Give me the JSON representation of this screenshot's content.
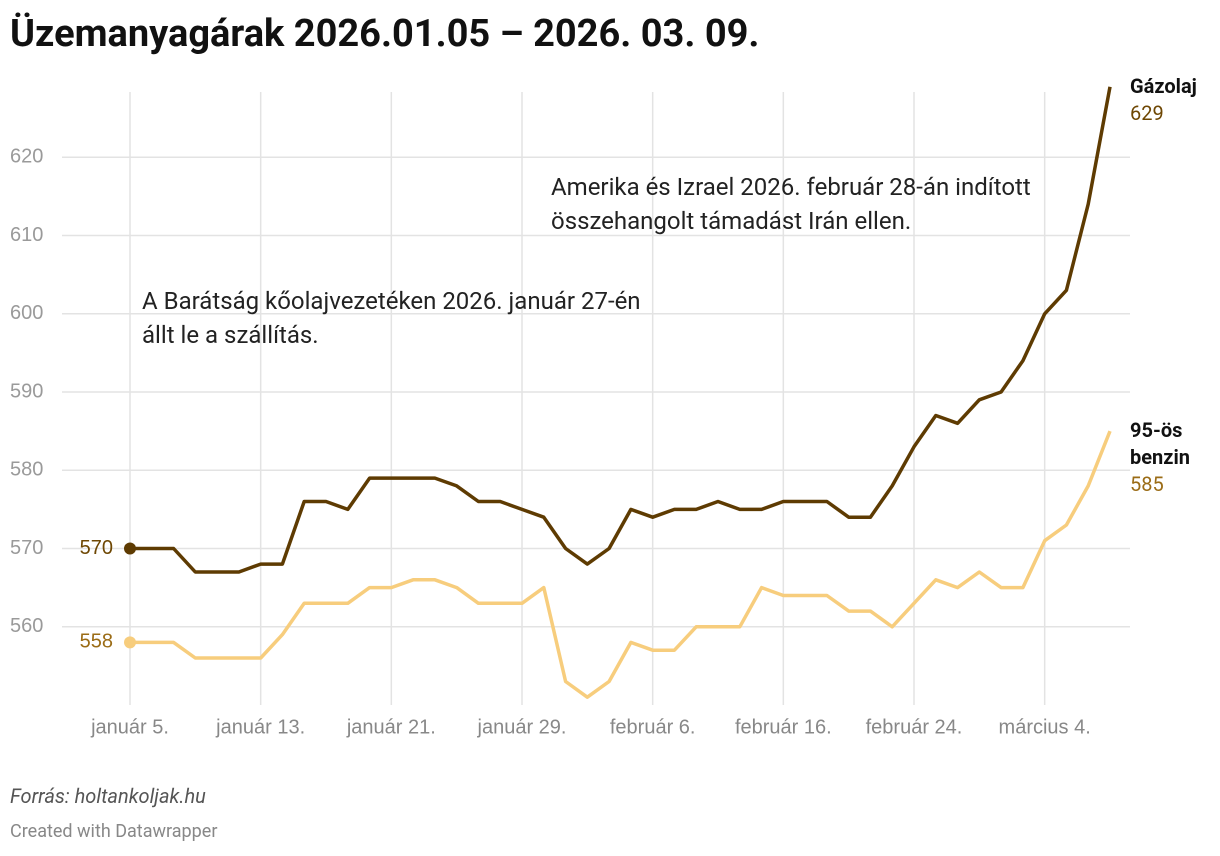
{
  "chart_data": {
    "type": "line",
    "title": "Üzemanyagárak 2026.01.05 – 2026. 03. 09.",
    "source": "Forrás: holtankoljak.hu",
    "credit": "Created with Datawrapper",
    "categories": [
      "január 5.",
      null,
      null,
      null,
      null,
      null,
      "január 13.",
      null,
      null,
      null,
      null,
      null,
      "január 21.",
      null,
      null,
      null,
      null,
      null,
      "január 29.",
      null,
      null,
      null,
      null,
      null,
      "február 6.",
      null,
      null,
      null,
      null,
      null,
      "február 16.",
      null,
      null,
      null,
      null,
      null,
      "február 24.",
      null,
      null,
      null,
      null,
      null,
      "március 4.",
      null,
      null,
      null
    ],
    "series": [
      {
        "name": "Gázolaj",
        "color": "#5e3b02",
        "label_color": "#6e4703",
        "values": [
          570,
          570,
          570,
          567,
          567,
          567,
          568,
          568,
          576,
          576,
          575,
          579,
          579,
          579,
          579,
          578,
          576,
          576,
          575,
          574,
          570,
          568,
          570,
          575,
          574,
          575,
          575,
          576,
          575,
          575,
          576,
          576,
          576,
          574,
          574,
          578,
          583,
          587,
          586,
          589,
          590,
          594,
          600,
          603,
          614,
          629
        ]
      },
      {
        "name": "95-ös benzin",
        "color": "#f7cd7d",
        "label_color": "#9b6c16",
        "values": [
          558,
          558,
          558,
          556,
          556,
          556,
          556,
          559,
          563,
          563,
          563,
          565,
          565,
          566,
          566,
          565,
          563,
          563,
          563,
          565,
          553,
          551,
          553,
          558,
          557,
          557,
          560,
          560,
          560,
          565,
          564,
          564,
          564,
          562,
          562,
          560,
          563,
          566,
          565,
          567,
          565,
          565,
          571,
          573,
          578,
          585
        ]
      }
    ],
    "ylim": [
      550,
      630
    ],
    "yticks": [
      560,
      570,
      580,
      590,
      600,
      610,
      620
    ],
    "grid": true,
    "annotations": [
      {
        "text": "A Barátság kőolajvezetéken 2026. január 27-én állt le a szállítás."
      },
      {
        "text": "Amerika és Izrael 2026. február 28-án indított összehangolt támadást Irán ellen."
      }
    ]
  }
}
